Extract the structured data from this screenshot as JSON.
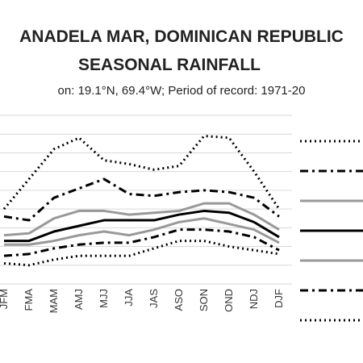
{
  "chart_data": {
    "type": "line",
    "title_line1": "ANADELA MAR, DOMINICAN REPUBLIC",
    "title_line2": "SEASONAL RAINFALL",
    "subtitle": "on: 19.1°N, 69.4°W; Period of record: 1971-20",
    "categories": [
      "JFM",
      "FMA",
      "MAM",
      "AMJ",
      "MJJ",
      "JJA",
      "JAS",
      "ASO",
      "SON",
      "OND",
      "NDJ",
      "DJF"
    ],
    "ylim": [
      0,
      9
    ],
    "grid": true,
    "legend": "right",
    "series": [
      {
        "style": "dotted",
        "color": "#000000",
        "values": [
          4.0,
          5.6,
          7.2,
          7.8,
          6.6,
          6.4,
          6.1,
          6.3,
          7.9,
          7.8,
          6.0,
          4.0
        ]
      },
      {
        "style": "dashdot",
        "color": "#000000",
        "values": [
          3.6,
          3.4,
          4.6,
          5.1,
          5.6,
          4.8,
          4.7,
          4.9,
          5.0,
          4.9,
          4.6,
          3.6
        ]
      },
      {
        "style": "solid",
        "color": "#999999",
        "values": [
          2.6,
          2.7,
          3.5,
          3.9,
          3.9,
          3.7,
          3.8,
          3.9,
          4.3,
          4.3,
          3.7,
          2.9
        ]
      },
      {
        "style": "solid",
        "color": "#000000",
        "values": [
          2.3,
          2.3,
          2.8,
          3.1,
          3.4,
          3.4,
          3.4,
          3.7,
          3.9,
          3.8,
          3.3,
          2.5
        ]
      },
      {
        "style": "solid",
        "color": "#999999",
        "values": [
          2.1,
          2.1,
          2.3,
          2.6,
          2.8,
          2.6,
          2.9,
          3.3,
          3.5,
          3.2,
          2.9,
          2.2
        ]
      },
      {
        "style": "dashdot",
        "color": "#000000",
        "values": [
          1.5,
          1.6,
          1.9,
          2.1,
          2.2,
          2.2,
          2.5,
          2.9,
          2.9,
          2.8,
          2.5,
          1.8
        ]
      },
      {
        "style": "dotted",
        "color": "#000000",
        "values": [
          1.1,
          1.0,
          1.3,
          1.5,
          1.5,
          1.5,
          1.9,
          2.3,
          2.3,
          2.0,
          1.8,
          1.6
        ]
      }
    ]
  }
}
